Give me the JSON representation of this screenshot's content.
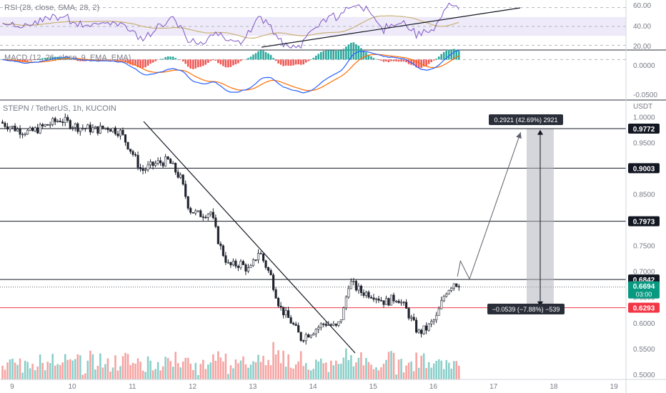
{
  "colors": {
    "up": "#26a69a",
    "down": "#ef5350",
    "candle": "#1e222d",
    "rsi_band": "#eeeaf9",
    "rsi_line": "#7e57c2",
    "rsi_ma": "#c9b175",
    "macd_line": "#2962ff",
    "signal_line": "#ff6d00",
    "support_red": "#f23645",
    "current_price_bg": "#089981",
    "measure_box": "#b2b5be"
  },
  "rsi_panel": {
    "label": "RSI (28, close, SMA, 28, 2)",
    "ticks": [
      "60.00",
      "40.00",
      "20.00"
    ]
  },
  "macd_panel": {
    "label": "MACD (12, 26, close, 9, EMA, EMA)",
    "ticks": [
      "0.0000",
      "-0.0500"
    ]
  },
  "price_panel": {
    "symbol_label": "STEPN / TetherUS, 1h, KUCOIN",
    "currency": "USDT",
    "ticks": [
      "1.0000",
      "0.9500",
      "0.9000",
      "0.8500",
      "0.8000",
      "0.7500",
      "0.7000",
      "0.6500",
      "0.6000",
      "0.5500",
      "0.5000"
    ],
    "levels": [
      {
        "value": 0.9772,
        "label": "0.9772"
      },
      {
        "value": 0.9003,
        "label": "0.9003"
      },
      {
        "value": 0.7973,
        "label": "0.7973"
      },
      {
        "value": 0.6842,
        "label": "0.6842"
      }
    ],
    "support": {
      "value": 0.6293,
      "label": "0.6293"
    },
    "current_price": {
      "value": 0.6694,
      "label": "0.6694",
      "countdown": "03:00"
    },
    "measure_up": "0.2921 (42.69%) 2921",
    "measure_down": "−0.0539 (−7.88%) −539"
  },
  "x_axis": {
    "labels": [
      "9",
      "10",
      "11",
      "12",
      "13",
      "14",
      "15",
      "16",
      "17",
      "18",
      "19"
    ]
  },
  "chart_data": {
    "type": "candlestick",
    "symbol": "STEPN / TetherUS",
    "interval": "1h",
    "exchange": "KUCOIN",
    "price_ylim": [
      0.49,
      1.03
    ],
    "x_range_days": [
      8.8,
      19.2
    ],
    "horizontal_levels": [
      0.9772,
      0.9003,
      0.7973,
      0.6842,
      0.6293
    ],
    "current_price": 0.6694,
    "price_path": [
      {
        "day": 8.8,
        "price": 0.99
      },
      {
        "day": 9.1,
        "price": 0.975
      },
      {
        "day": 9.3,
        "price": 0.97
      },
      {
        "day": 9.6,
        "price": 0.985
      },
      {
        "day": 9.8,
        "price": 0.995
      },
      {
        "day": 10.1,
        "price": 0.98
      },
      {
        "day": 10.4,
        "price": 0.975
      },
      {
        "day": 10.6,
        "price": 0.98
      },
      {
        "day": 10.8,
        "price": 0.97
      },
      {
        "day": 11.0,
        "price": 0.93
      },
      {
        "day": 11.15,
        "price": 0.895
      },
      {
        "day": 11.4,
        "price": 0.91
      },
      {
        "day": 11.6,
        "price": 0.915
      },
      {
        "day": 11.8,
        "price": 0.88
      },
      {
        "day": 11.95,
        "price": 0.82
      },
      {
        "day": 12.1,
        "price": 0.81
      },
      {
        "day": 12.3,
        "price": 0.815
      },
      {
        "day": 12.45,
        "price": 0.75
      },
      {
        "day": 12.6,
        "price": 0.71
      },
      {
        "day": 12.8,
        "price": 0.715
      },
      {
        "day": 12.95,
        "price": 0.7
      },
      {
        "day": 13.1,
        "price": 0.74
      },
      {
        "day": 13.3,
        "price": 0.69
      },
      {
        "day": 13.45,
        "price": 0.63
      },
      {
        "day": 13.65,
        "price": 0.6
      },
      {
        "day": 13.8,
        "price": 0.57
      },
      {
        "day": 14.0,
        "price": 0.585
      },
      {
        "day": 14.2,
        "price": 0.6
      },
      {
        "day": 14.4,
        "price": 0.59
      },
      {
        "day": 14.5,
        "price": 0.62
      },
      {
        "day": 14.6,
        "price": 0.68
      },
      {
        "day": 14.8,
        "price": 0.66
      },
      {
        "day": 15.0,
        "price": 0.655
      },
      {
        "day": 15.2,
        "price": 0.64
      },
      {
        "day": 15.4,
        "price": 0.65
      },
      {
        "day": 15.55,
        "price": 0.625
      },
      {
        "day": 15.75,
        "price": 0.58
      },
      {
        "day": 15.9,
        "price": 0.59
      },
      {
        "day": 16.05,
        "price": 0.61
      },
      {
        "day": 16.2,
        "price": 0.66
      },
      {
        "day": 16.35,
        "price": 0.68
      },
      {
        "day": 16.45,
        "price": 0.6694
      }
    ],
    "rsi_ylim": [
      15,
      68
    ],
    "rsi_band": [
      30,
      50
    ],
    "rsi_levels": [
      60,
      40,
      20
    ],
    "macd_ylim": [
      -0.055,
      0.012
    ],
    "projection_path": [
      {
        "day": 16.4,
        "price": 0.69
      },
      {
        "day": 16.45,
        "price": 0.72
      },
      {
        "day": 16.6,
        "price": 0.685
      },
      {
        "day": 17.45,
        "price": 0.97
      }
    ],
    "measure": {
      "day_from": 17.55,
      "day_to": 18.0,
      "top": 0.9763,
      "mid": 0.6842,
      "bottom": 0.6303
    }
  }
}
